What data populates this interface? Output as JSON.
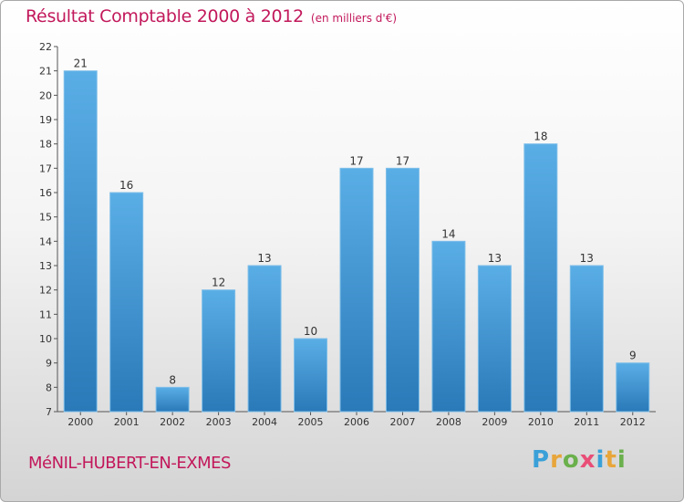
{
  "chart_data": {
    "type": "bar",
    "title": "Résultat Comptable 2000 à 2012",
    "subtitle": "(en milliers d'€)",
    "categories": [
      "2000",
      "2001",
      "2002",
      "2003",
      "2004",
      "2005",
      "2006",
      "2007",
      "2008",
      "2009",
      "2010",
      "2011",
      "2012"
    ],
    "values": [
      21,
      16,
      8,
      12,
      13,
      10,
      17,
      17,
      14,
      13,
      18,
      13,
      9
    ],
    "xlabel": "",
    "ylabel": "",
    "ylim": [
      7,
      22
    ],
    "yticks": [
      7,
      8,
      9,
      10,
      11,
      12,
      13,
      14,
      15,
      16,
      17,
      18,
      19,
      20,
      21,
      22
    ],
    "grid": false,
    "colors": {
      "bar_top": "#5aaee6",
      "bar_bottom": "#2a79b8",
      "text": "#333333",
      "title": "#c2185b"
    }
  },
  "commune": "MéNIL-HUBERT-EN-EXMES",
  "logo": {
    "letters": [
      "P",
      "r",
      "o",
      "x",
      "i",
      "t",
      "i"
    ],
    "colors": [
      "#3aa0d8",
      "#e8a53a",
      "#6ab04c",
      "#e94e77",
      "#3aa0d8",
      "#e8a53a",
      "#6ab04c"
    ]
  }
}
